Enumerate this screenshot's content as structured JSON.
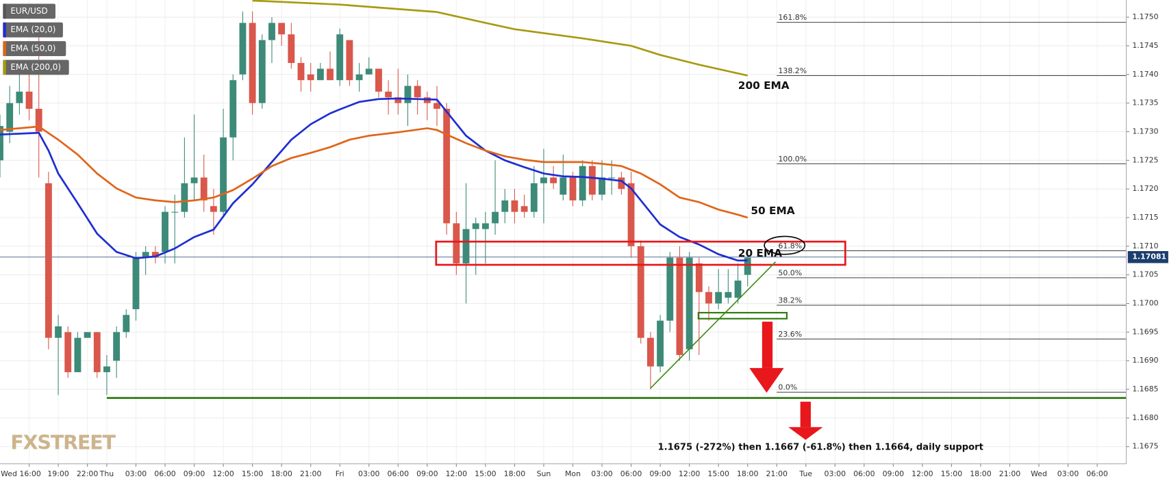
{
  "chart_data": {
    "type": "candlestick",
    "title": "EUR/USD",
    "up_color": "#3d8a78",
    "down_color": "#d9574b",
    "grid": true,
    "xlim": [
      -3,
      113
    ],
    "ylim": [
      1.1672,
      1.1753
    ],
    "x": [
      -3,
      -2,
      -1,
      0,
      1,
      2,
      3,
      4,
      5,
      6,
      7,
      8,
      9,
      10,
      11,
      12,
      13,
      14,
      15,
      16,
      17,
      18,
      19,
      20,
      21,
      22,
      23,
      24,
      25,
      26,
      27,
      28,
      29,
      30,
      31,
      32,
      33,
      34,
      35,
      36,
      37,
      38,
      39,
      40,
      41,
      42,
      43,
      44,
      45,
      46,
      47,
      48,
      49,
      50,
      51,
      52,
      53,
      54,
      55,
      56,
      57,
      58,
      59,
      60,
      61,
      62,
      63,
      64,
      65,
      66,
      67,
      68,
      69,
      70,
      71,
      72,
      73,
      74
    ],
    "open": [
      1.1725,
      1.173,
      1.1735,
      1.1737,
      1.1734,
      1.1721,
      1.1694,
      1.1695,
      1.1688,
      1.1694,
      1.1695,
      1.1688,
      1.169,
      1.1695,
      1.1699,
      1.1708,
      1.1709,
      1.1709,
      1.1716,
      1.1716,
      1.1721,
      1.1722,
      1.1717,
      1.1716,
      1.1729,
      1.174,
      1.1749,
      1.1735,
      1.1746,
      1.1749,
      1.1747,
      1.1742,
      1.174,
      1.1739,
      1.1741,
      1.1739,
      1.1746,
      1.1739,
      1.174,
      1.1741,
      1.1737,
      1.1736,
      1.1735,
      1.1738,
      1.1736,
      1.1735,
      1.1734,
      1.1714,
      1.1707,
      1.1713,
      1.1713,
      1.1714,
      1.1716,
      1.1718,
      1.1717,
      1.1716,
      1.1721,
      1.1722,
      1.1719,
      1.1722,
      1.1718,
      1.1724,
      1.1719,
      1.1722,
      1.1722,
      1.1721,
      1.171,
      1.1694,
      1.1689,
      1.1697,
      1.1708,
      1.1692,
      1.1707,
      1.1702,
      1.17,
      1.1701,
      1.1701,
      1.1705
    ],
    "high": [
      1.1733,
      1.1738,
      1.1741,
      1.174,
      1.1748,
      1.1723,
      1.1698,
      1.1696,
      1.1695,
      1.1695,
      1.1695,
      1.1691,
      1.1696,
      1.1699,
      1.1709,
      1.171,
      1.171,
      1.1717,
      1.1719,
      1.1729,
      1.1733,
      1.1726,
      1.172,
      1.1734,
      1.174,
      1.1751,
      1.1751,
      1.1747,
      1.175,
      1.1749,
      1.1749,
      1.1743,
      1.1742,
      1.1742,
      1.1744,
      1.1748,
      1.1746,
      1.1742,
      1.1743,
      1.1741,
      1.1739,
      1.1741,
      1.174,
      1.1739,
      1.1737,
      1.1738,
      1.1735,
      1.1716,
      1.1721,
      1.1715,
      1.1716,
      1.1725,
      1.172,
      1.172,
      1.1719,
      1.1724,
      1.1727,
      1.1724,
      1.1726,
      1.1723,
      1.1725,
      1.1725,
      1.1725,
      1.1725,
      1.1723,
      1.1723,
      1.1711,
      1.1695,
      1.1698,
      1.1709,
      1.171,
      1.1709,
      1.1708,
      1.1703,
      1.1706,
      1.1706,
      1.1707,
      1.1709
    ],
    "low": [
      1.1722,
      1.1728,
      1.1733,
      1.1732,
      1.1722,
      1.1692,
      1.1684,
      1.1687,
      1.1688,
      1.1694,
      1.1687,
      1.1684,
      1.1687,
      1.1694,
      1.1697,
      1.1705,
      1.1707,
      1.1707,
      1.1707,
      1.1715,
      1.1718,
      1.1716,
      1.1712,
      1.1715,
      1.1725,
      1.1739,
      1.1733,
      1.1734,
      1.1742,
      1.1745,
      1.1741,
      1.1737,
      1.1737,
      1.1739,
      1.1739,
      1.1738,
      1.1738,
      1.1737,
      1.174,
      1.1736,
      1.1733,
      1.1733,
      1.1731,
      1.1733,
      1.1732,
      1.1731,
      1.1712,
      1.1705,
      1.17,
      1.1705,
      1.1707,
      1.1712,
      1.1714,
      1.1714,
      1.1715,
      1.1715,
      1.1714,
      1.172,
      1.1718,
      1.1717,
      1.1717,
      1.1718,
      1.1718,
      1.1719,
      1.1719,
      1.1708,
      1.1693,
      1.1685,
      1.1688,
      1.1695,
      1.169,
      1.169,
      1.1691,
      1.1697,
      1.1699,
      1.17,
      1.17,
      1.1703
    ],
    "close": [
      1.1731,
      1.1735,
      1.1737,
      1.1734,
      1.173,
      1.1694,
      1.1696,
      1.1688,
      1.1694,
      1.1695,
      1.1688,
      1.1689,
      1.1695,
      1.1698,
      1.1708,
      1.1709,
      1.1708,
      1.1716,
      1.1716,
      1.1721,
      1.1722,
      1.1718,
      1.1716,
      1.1729,
      1.1739,
      1.1749,
      1.1735,
      1.1746,
      1.1749,
      1.1747,
      1.1742,
      1.1739,
      1.1739,
      1.1741,
      1.1739,
      1.1747,
      1.1739,
      1.174,
      1.1741,
      1.1737,
      1.1736,
      1.1735,
      1.1738,
      1.1736,
      1.1735,
      1.1734,
      1.1714,
      1.1707,
      1.1713,
      1.1714,
      1.1714,
      1.1716,
      1.1718,
      1.1716,
      1.1716,
      1.1721,
      1.1722,
      1.1721,
      1.1722,
      1.1718,
      1.1724,
      1.1719,
      1.1722,
      1.1722,
      1.172,
      1.171,
      1.1694,
      1.1689,
      1.1697,
      1.1708,
      1.1691,
      1.1708,
      1.1702,
      1.17,
      1.1702,
      1.1702,
      1.1704,
      1.1708
    ],
    "series": [
      {
        "name": "EMA (20,0)",
        "color": "#1f2ed1",
        "x": [
          -3,
          1,
          2,
          3,
          5,
          7,
          9,
          11,
          13,
          15,
          17,
          19,
          21,
          23,
          25,
          27,
          29,
          31,
          32,
          34,
          36,
          38,
          42,
          43,
          45,
          47,
          49,
          51,
          53,
          55,
          57,
          59,
          61,
          62,
          65,
          67,
          69,
          71,
          73,
          74
        ],
        "values": [
          1.17295,
          1.17298,
          1.17267,
          1.17227,
          1.17175,
          1.17122,
          1.1709,
          1.17079,
          1.17082,
          1.17096,
          1.17116,
          1.17129,
          1.17175,
          1.17208,
          1.17247,
          1.17286,
          1.17313,
          1.17332,
          1.17339,
          1.17352,
          1.17357,
          1.17358,
          1.17356,
          1.17335,
          1.17293,
          1.17267,
          1.1725,
          1.17238,
          1.17227,
          1.17222,
          1.17221,
          1.17218,
          1.17214,
          1.17201,
          1.17138,
          1.17116,
          1.17103,
          1.17086,
          1.17075,
          1.17075
        ]
      },
      {
        "name": "EMA (50,0)",
        "color": "#e0651a",
        "x": [
          -3,
          1,
          3,
          5,
          7,
          9,
          11,
          13,
          15,
          17,
          19,
          21,
          23,
          25,
          27,
          29,
          31,
          33,
          35,
          38,
          41,
          42,
          43,
          45,
          47,
          49,
          51,
          53,
          55,
          57,
          59,
          61,
          63,
          65,
          67,
          69,
          71,
          73,
          74
        ],
        "values": [
          1.17303,
          1.17309,
          1.17286,
          1.1726,
          1.17227,
          1.17201,
          1.17185,
          1.1718,
          1.17177,
          1.1718,
          1.17185,
          1.17198,
          1.17218,
          1.1724,
          1.17254,
          1.17263,
          1.17273,
          1.17286,
          1.17293,
          1.17299,
          1.17306,
          1.17303,
          1.17295,
          1.1728,
          1.17267,
          1.17257,
          1.17251,
          1.17247,
          1.17247,
          1.17247,
          1.17244,
          1.1724,
          1.17227,
          1.17208,
          1.17185,
          1.17177,
          1.17164,
          1.17155,
          1.1715
        ]
      },
      {
        "name": "EMA (200,0)",
        "color": "#a89a12",
        "x": [
          23,
          32,
          42,
          47,
          50,
          57,
          62,
          65,
          69,
          74
        ],
        "values": [
          1.17529,
          1.17522,
          1.17509,
          1.1749,
          1.17479,
          1.17463,
          1.1745,
          1.17434,
          1.17417,
          1.17398
        ]
      }
    ],
    "xticks": [
      {
        "value": 0,
        "label": "Wed 16:00"
      },
      {
        "value": 3,
        "label": "19:00"
      },
      {
        "value": 6,
        "label": "22:00"
      },
      {
        "value": 8,
        "label": "Thu"
      },
      {
        "value": 11,
        "label": "03:00"
      },
      {
        "value": 14,
        "label": "06:00"
      },
      {
        "value": 17,
        "label": "09:00"
      },
      {
        "value": 20,
        "label": "12:00"
      },
      {
        "value": 23,
        "label": "15:00"
      },
      {
        "value": 26,
        "label": "18:00"
      },
      {
        "value": 29,
        "label": "21:00"
      },
      {
        "value": 32,
        "label": "Fri"
      },
      {
        "value": 35,
        "label": "03:00"
      },
      {
        "value": 38,
        "label": "06:00"
      },
      {
        "value": 41,
        "label": "09:00"
      },
      {
        "value": 44,
        "label": "12:00"
      },
      {
        "value": 47,
        "label": "15:00"
      },
      {
        "value": 50,
        "label": "18:00"
      },
      {
        "value": 53,
        "label": "Sun"
      },
      {
        "value": 56,
        "label": "Mon"
      },
      {
        "value": 59,
        "label": "03:00"
      },
      {
        "value": 62,
        "label": "06:00"
      },
      {
        "value": 65,
        "label": "09:00"
      },
      {
        "value": 68,
        "label": "12:00"
      },
      {
        "value": 71,
        "label": "15:00"
      },
      {
        "value": 74,
        "label": "18:00"
      },
      {
        "value": 77,
        "label": "21:00"
      },
      {
        "value": 80,
        "label": "Tue"
      },
      {
        "value": 83,
        "label": "03:00"
      },
      {
        "value": 86,
        "label": "06:00"
      },
      {
        "value": 89,
        "label": "09:00"
      },
      {
        "value": 92,
        "label": "12:00"
      },
      {
        "value": 95,
        "label": "15:00"
      },
      {
        "value": 98,
        "label": "18:00"
      },
      {
        "value": 101,
        "label": "21:00"
      },
      {
        "value": 104,
        "label": "Wed"
      },
      {
        "value": 107,
        "label": "03:00"
      },
      {
        "value": 110,
        "label": "06:00"
      }
    ],
    "yticks": [
      {
        "value": 1.175,
        "label": "1.1750"
      },
      1.1745,
      {
        "value": 1.174,
        "label": "1.1740"
      },
      1.1735,
      {
        "value": 1.173,
        "label": "1.1730"
      },
      1.1725,
      {
        "value": 1.172,
        "label": "1.1720"
      },
      1.1715,
      {
        "value": 1.171,
        "label": "1.1710"
      },
      1.1705,
      {
        "value": 1.17,
        "label": "1.1700"
      },
      1.1695,
      {
        "value": 1.169,
        "label": "1.1690"
      },
      1.1685,
      {
        "value": 1.168,
        "label": "1.1680"
      },
      1.1675
    ],
    "last_price": 1.17081,
    "support_line": 1.16835,
    "fib_levels": [
      {
        "value": 1.17491,
        "label": "161.8%"
      },
      {
        "value": 1.17398,
        "label": "138.2%"
      },
      {
        "value": 1.17244,
        "label": "100.0%"
      },
      {
        "value": 1.17092,
        "label": "61.8%"
      },
      {
        "value": 1.17045,
        "label": "50.0%"
      },
      {
        "value": 1.16997,
        "label": "38.2%"
      },
      {
        "value": 1.16938,
        "label": "23.6%"
      },
      {
        "value": 1.16845,
        "label": "0.0%"
      }
    ],
    "annotations": [
      "200 EMA",
      "50 EMA",
      "20 EMA"
    ],
    "note": "1.1675 (-272%) then 1.1667 (-61.8%) then 1.1664, daily support",
    "watermark": "FXSTREET"
  }
}
